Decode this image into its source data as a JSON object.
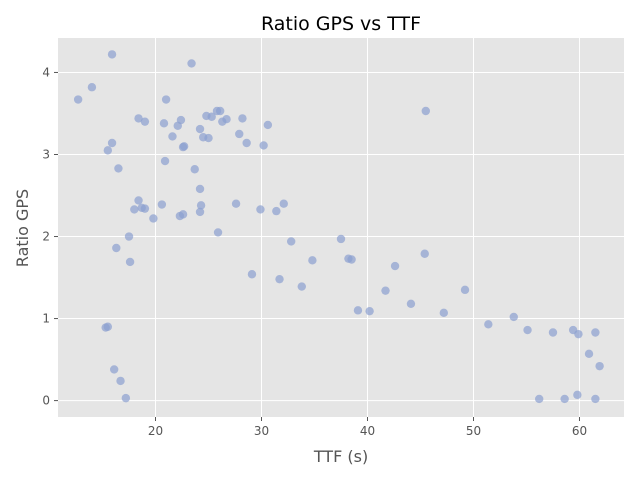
{
  "chart_data": {
    "type": "scatter",
    "title": "Ratio GPS vs TTF",
    "xlabel": "TTF (s)",
    "ylabel": "Ratio GPS",
    "xlim": [
      10.8,
      64.2
    ],
    "ylim": [
      -0.2,
      4.42
    ],
    "x_ticks": [
      20,
      30,
      40,
      50,
      60
    ],
    "y_ticks": [
      0,
      1,
      2,
      3,
      4
    ],
    "grid": true,
    "legend": "none",
    "colors": {
      "background": "#e5e5e5",
      "grid": "#ffffff",
      "point": "#8c9fd0",
      "text": "#555555",
      "title": "#000000"
    },
    "series": [
      {
        "points": [
          [
            12.7,
            3.67
          ],
          [
            14.0,
            3.82
          ],
          [
            15.9,
            4.22
          ],
          [
            23.4,
            4.11
          ],
          [
            15.5,
            3.05
          ],
          [
            15.9,
            3.14
          ],
          [
            16.5,
            2.83
          ],
          [
            18.4,
            3.44
          ],
          [
            19.0,
            3.4
          ],
          [
            20.8,
            3.38
          ],
          [
            21.0,
            3.67
          ],
          [
            21.6,
            3.22
          ],
          [
            22.1,
            3.35
          ],
          [
            22.4,
            3.42
          ],
          [
            22.6,
            3.09
          ],
          [
            22.7,
            3.1
          ],
          [
            24.2,
            3.31
          ],
          [
            24.5,
            3.21
          ],
          [
            24.8,
            3.47
          ],
          [
            25.0,
            3.2
          ],
          [
            25.3,
            3.46
          ],
          [
            25.8,
            3.53
          ],
          [
            26.1,
            3.53
          ],
          [
            26.3,
            3.4
          ],
          [
            26.7,
            3.43
          ],
          [
            27.9,
            3.25
          ],
          [
            28.2,
            3.44
          ],
          [
            28.6,
            3.14
          ],
          [
            30.2,
            3.11
          ],
          [
            30.6,
            3.36
          ],
          [
            45.5,
            3.53
          ],
          [
            20.9,
            2.92
          ],
          [
            23.7,
            2.82
          ],
          [
            24.2,
            2.58
          ],
          [
            24.3,
            2.38
          ],
          [
            24.2,
            2.3
          ],
          [
            25.9,
            2.05
          ],
          [
            27.6,
            2.4
          ],
          [
            29.9,
            2.33
          ],
          [
            31.4,
            2.31
          ],
          [
            32.1,
            2.4
          ],
          [
            32.8,
            1.94
          ],
          [
            34.8,
            1.71
          ],
          [
            37.5,
            1.97
          ],
          [
            38.2,
            1.73
          ],
          [
            38.5,
            1.72
          ],
          [
            42.6,
            1.64
          ],
          [
            45.4,
            1.79
          ],
          [
            49.2,
            1.35
          ],
          [
            18.0,
            2.33
          ],
          [
            18.4,
            2.44
          ],
          [
            18.7,
            2.35
          ],
          [
            19.0,
            2.34
          ],
          [
            19.8,
            2.22
          ],
          [
            20.6,
            2.39
          ],
          [
            22.3,
            2.25
          ],
          [
            22.6,
            2.27
          ],
          [
            16.3,
            1.86
          ],
          [
            17.5,
            2.0
          ],
          [
            17.6,
            1.69
          ],
          [
            15.3,
            0.89
          ],
          [
            15.5,
            0.9
          ],
          [
            16.1,
            0.38
          ],
          [
            16.7,
            0.24
          ],
          [
            17.2,
            0.03
          ],
          [
            55.1,
            0.86
          ],
          [
            57.5,
            0.83
          ],
          [
            59.4,
            0.86
          ],
          [
            59.9,
            0.81
          ],
          [
            61.5,
            0.83
          ],
          [
            60.9,
            0.57
          ],
          [
            61.9,
            0.42
          ],
          [
            61.5,
            0.02
          ],
          [
            59.8,
            0.07
          ],
          [
            58.6,
            0.02
          ],
          [
            56.2,
            0.02
          ],
          [
            53.8,
            1.02
          ],
          [
            51.4,
            0.93
          ],
          [
            47.2,
            1.07
          ],
          [
            44.1,
            1.18
          ],
          [
            41.7,
            1.34
          ],
          [
            40.2,
            1.09
          ],
          [
            39.1,
            1.1
          ],
          [
            33.8,
            1.39
          ],
          [
            31.7,
            1.48
          ],
          [
            29.1,
            1.54
          ]
        ]
      }
    ]
  }
}
